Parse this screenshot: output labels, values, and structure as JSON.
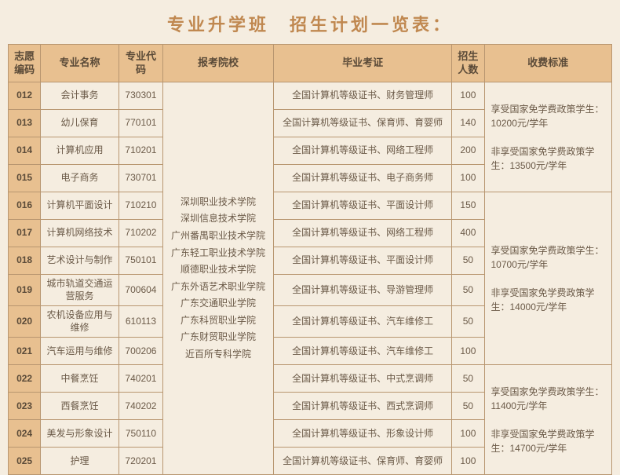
{
  "title": "专业升学班　招生计划一览表：",
  "headers": {
    "code": "志愿编码",
    "name": "专业名称",
    "major": "专业代码",
    "school": "报考院校",
    "cert": "毕业考证",
    "num": "招生人数",
    "fee": "收费标准"
  },
  "schools": "深圳职业技术学院\n深圳信息技术学院\n广州番禺职业技术学院\n广东轻工职业技术学院\n顺德职业技术学院\n广东外语艺术职业学院\n广东交通职业学院\n广东科贸职业学院\n广东财贸职业学院\n近百所专科学院",
  "feeGroups": [
    "享受国家免学费政策学生：10200元/学年\n\n非享受国家免学费政策学生：13500元/学年",
    "享受国家免学费政策学生：10700元/学年\n\n非享受国家免学费政策学生：14000元/学年",
    "享受国家免学费政策学生：11400元/学年\n\n非享受国家免学费政策学生：14700元/学年"
  ],
  "rows": [
    {
      "code": "012",
      "name": "会计事务",
      "major": "730301",
      "cert": "全国计算机等级证书、财务管理师",
      "num": "100"
    },
    {
      "code": "013",
      "name": "幼儿保育",
      "major": "770101",
      "cert": "全国计算机等级证书、保育师、育婴师",
      "num": "140"
    },
    {
      "code": "014",
      "name": "计算机应用",
      "major": "710201",
      "cert": "全国计算机等级证书、网络工程师",
      "num": "200"
    },
    {
      "code": "015",
      "name": "电子商务",
      "major": "730701",
      "cert": "全国计算机等级证书、电子商务师",
      "num": "100"
    },
    {
      "code": "016",
      "name": "计算机平面设计",
      "major": "710210",
      "cert": "全国计算机等级证书、平面设计师",
      "num": "150"
    },
    {
      "code": "017",
      "name": "计算机网络技术",
      "major": "710202",
      "cert": "全国计算机等级证书、网络工程师",
      "num": "400"
    },
    {
      "code": "018",
      "name": "艺术设计与制作",
      "major": "750101",
      "cert": "全国计算机等级证书、平面设计师",
      "num": "50"
    },
    {
      "code": "019",
      "name": "城市轨道交通运营服务",
      "major": "700604",
      "cert": "全国计算机等级证书、导游管理师",
      "num": "50"
    },
    {
      "code": "020",
      "name": "农机设备应用与维修",
      "major": "610113",
      "cert": "全国计算机等级证书、汽车维修工",
      "num": "50"
    },
    {
      "code": "021",
      "name": "汽车运用与维修",
      "major": "700206",
      "cert": "全国计算机等级证书、汽车维修工",
      "num": "100"
    },
    {
      "code": "022",
      "name": "中餐烹饪",
      "major": "740201",
      "cert": "全国计算机等级证书、中式烹调师",
      "num": "50"
    },
    {
      "code": "023",
      "name": "西餐烹饪",
      "major": "740202",
      "cert": "全国计算机等级证书、西式烹调师",
      "num": "50"
    },
    {
      "code": "024",
      "name": "美发与形象设计",
      "major": "750110",
      "cert": "全国计算机等级证书、形象设计师",
      "num": "100"
    },
    {
      "code": "025",
      "name": "护理",
      "major": "720201",
      "cert": "全国计算机等级证书、保育师、育婴师",
      "num": "100"
    }
  ],
  "feeSpans": [
    4,
    6,
    4
  ],
  "colors": {
    "background": "#f5ede0",
    "headerBg": "#e8c090",
    "border": "#b89670",
    "titleColor": "#c08850",
    "textColor": "#6b5a48"
  }
}
